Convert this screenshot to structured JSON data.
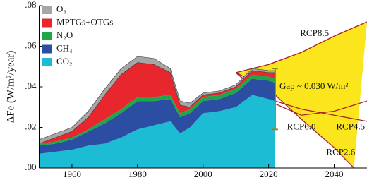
{
  "chart_data": {
    "type": "stacked_area",
    "ylabel": "ΔFe (W/m²/year)",
    "xlim": [
      1950,
      2050
    ],
    "xticks": [
      1960,
      1980,
      2000,
      2020,
      2040
    ],
    "ylim": [
      0,
      0.08
    ],
    "yticks": [
      {
        "value": 0,
        "label": ".00"
      },
      {
        "value": 0.02,
        "label": ".02"
      },
      {
        "value": 0.04,
        "label": ".04"
      },
      {
        "value": 0.06,
        "label": ".06"
      },
      {
        "value": 0.08,
        "label": ".08"
      }
    ],
    "legend": "upper left",
    "x": [
      1950,
      1955,
      1960,
      1965,
      1970,
      1975,
      1980,
      1985,
      1990,
      1993,
      1996,
      2000,
      2005,
      2010,
      2015,
      2020,
      2022
    ],
    "series": [
      {
        "name": "CO₂",
        "color": "#1bbcd4",
        "values": [
          0.007,
          0.008,
          0.009,
          0.011,
          0.012,
          0.015,
          0.019,
          0.021,
          0.023,
          0.017,
          0.02,
          0.027,
          0.028,
          0.03,
          0.036,
          0.034,
          0.033
        ]
      },
      {
        "name": "CH₄",
        "color": "#2b4ea3",
        "values": [
          0.004,
          0.004,
          0.005,
          0.007,
          0.01,
          0.012,
          0.014,
          0.012,
          0.011,
          0.008,
          0.007,
          0.006,
          0.006,
          0.007,
          0.008,
          0.009,
          0.009
        ]
      },
      {
        "name": "N₂O",
        "color": "#1fa64a",
        "values": [
          0.001,
          0.001,
          0.001,
          0.001,
          0.002,
          0.002,
          0.002,
          0.002,
          0.002,
          0.002,
          0.002,
          0.002,
          0.002,
          0.002,
          0.002,
          0.002,
          0.002
        ]
      },
      {
        "name": "MPTGs+OTGs",
        "color": "#e8262d",
        "values": [
          0,
          0.002,
          0.003,
          0.006,
          0.012,
          0.017,
          0.017,
          0.016,
          0.011,
          0.004,
          0.001,
          0.001,
          0.001,
          0.001,
          0.002,
          0.002,
          0.003
        ]
      },
      {
        "name": "O₃",
        "color": "#a6a6a6",
        "values": [
          0.002,
          0.002,
          0.002,
          0.003,
          0.003,
          0.003,
          0.003,
          0.003,
          0.002,
          0.002,
          0.002,
          0.001,
          0.001,
          0.001,
          0.001,
          0.001,
          0.001
        ]
      }
    ],
    "scenario_fill": "#fbe61e",
    "scenarios": [
      {
        "name": "RCP8.5",
        "color": "#a8242c",
        "x": [
          2010,
          2020,
          2030,
          2040,
          2050
        ],
        "values": [
          0.047,
          0.051,
          0.057,
          0.065,
          0.072
        ]
      },
      {
        "name": "RCP6.0",
        "color": "#a8242c",
        "x": [
          2010,
          2020,
          2030,
          2040,
          2050
        ],
        "values": [
          0.047,
          0.034,
          0.029,
          0.026,
          0.023
        ]
      },
      {
        "name": "RCP4.5",
        "color": "#a8242c",
        "x": [
          2010,
          2020,
          2030,
          2040,
          2050
        ],
        "values": [
          0.047,
          0.033,
          0.026,
          0.028,
          0.033
        ]
      },
      {
        "name": "RCP2.6",
        "color": "#a8242c",
        "x": [
          2010,
          2020,
          2030,
          2040,
          2046
        ],
        "values": [
          0.047,
          0.039,
          0.024,
          0.01,
          0
        ]
      }
    ],
    "gap": {
      "label": "Gap ~ 0.030 W/m²",
      "color": "#8a8a2a",
      "x": 2022,
      "values": [
        0.049,
        0.019
      ]
    }
  }
}
